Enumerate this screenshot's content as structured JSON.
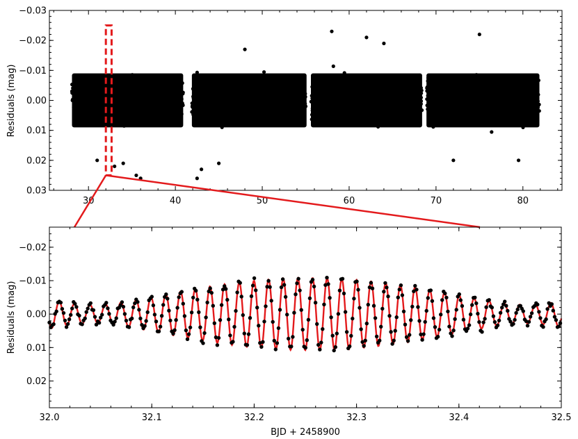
{
  "chart_data": [
    {
      "type": "scatter",
      "panel": "top",
      "ylabel": "Residuals (mag)",
      "y_inverted": true,
      "xlim": [
        25.5,
        84.5
      ],
      "ylim": [
        -0.03,
        0.03
      ],
      "xticks": [
        30,
        40,
        50,
        60,
        70,
        80
      ],
      "yticks": [
        -0.03,
        -0.02,
        -0.01,
        0.0,
        0.01,
        0.02,
        0.03
      ],
      "ytick_labels": [
        "−0.03",
        "−0.02",
        "−0.01",
        "0.00",
        "0.01",
        "0.02",
        "0.03"
      ],
      "point_color": "#000000",
      "segments": [
        {
          "x_start": 28.1,
          "x_end": 40.9
        },
        {
          "x_start": 41.9,
          "x_end": 55.1
        },
        {
          "x_start": 55.6,
          "x_end": 68.4
        },
        {
          "x_start": 68.9,
          "x_end": 81.9
        }
      ],
      "scatter_band_mag": [
        -0.012,
        0.012
      ],
      "outliers": [
        {
          "x": 31.0,
          "y": 0.02
        },
        {
          "x": 33.0,
          "y": 0.022
        },
        {
          "x": 34.0,
          "y": 0.021
        },
        {
          "x": 35.5,
          "y": 0.025
        },
        {
          "x": 36.0,
          "y": 0.026
        },
        {
          "x": 42.5,
          "y": 0.026
        },
        {
          "x": 43.0,
          "y": 0.023
        },
        {
          "x": 45.0,
          "y": 0.021
        },
        {
          "x": 58.0,
          "y": -0.023
        },
        {
          "x": 62.0,
          "y": -0.021
        },
        {
          "x": 75.0,
          "y": -0.022
        },
        {
          "x": 72.0,
          "y": 0.02
        },
        {
          "x": 79.5,
          "y": 0.02
        },
        {
          "x": 48.0,
          "y": -0.017
        },
        {
          "x": 64.0,
          "y": -0.019
        }
      ],
      "highlight_box": {
        "x_start": 32.0,
        "x_end": 32.5,
        "y_top": -0.025,
        "y_bottom": 0.025,
        "color": "#e31a1c"
      }
    },
    {
      "type": "line",
      "panel": "bottom",
      "xlabel": "BJD + 2458900",
      "ylabel": "Residuals (mag)",
      "y_inverted": true,
      "xlim": [
        32.0,
        32.5
      ],
      "ylim": [
        -0.026,
        0.028
      ],
      "xticks": [
        32.0,
        32.1,
        32.2,
        32.3,
        32.4,
        32.5
      ],
      "xtick_labels": [
        "32.0",
        "32.1",
        "32.2",
        "32.3",
        "32.4",
        "32.5"
      ],
      "yticks": [
        -0.02,
        -0.01,
        0.0,
        0.01,
        0.02
      ],
      "ytick_labels": [
        "−0.02",
        "−0.01",
        "0.00",
        "0.01",
        "0.02"
      ],
      "model_color": "#e31a1c",
      "point_color": "#000000",
      "model_components": [
        {
          "period_days": 0.01448,
          "amplitude_mag": 0.0068,
          "phase": 0.0
        },
        {
          "period_days": 0.014,
          "amplitude_mag": 0.004,
          "phase": 2.5
        }
      ]
    }
  ]
}
